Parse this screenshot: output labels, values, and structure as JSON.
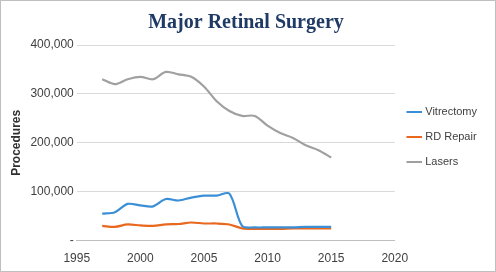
{
  "chart_data": {
    "type": "line",
    "title": "Major Retinal Surgery",
    "y_label": "Procedures",
    "x": [
      1997,
      1998,
      1999,
      2000,
      2001,
      2002,
      2003,
      2004,
      2005,
      2006,
      2007,
      2008,
      2009,
      2010,
      2011,
      2012,
      2013,
      2014,
      2015
    ],
    "series": [
      {
        "name": "Vitrectomy",
        "color": "#3a8fd6",
        "values": [
          55000,
          58000,
          75000,
          72000,
          70000,
          85000,
          82000,
          88000,
          92000,
          92000,
          96000,
          30000,
          27000,
          27000,
          27000,
          27000,
          28000,
          28000,
          28000
        ]
      },
      {
        "name": "RD Repair",
        "color": "#e8681e",
        "values": [
          30000,
          28000,
          33000,
          31000,
          30000,
          33000,
          34000,
          37000,
          35000,
          35000,
          33000,
          25000,
          24000,
          24000,
          24000,
          25000,
          25000,
          25000,
          25000
        ]
      },
      {
        "name": "Lasers",
        "color": "#a0a0a0",
        "values": [
          330000,
          320000,
          330000,
          335000,
          330000,
          345000,
          340000,
          335000,
          315000,
          285000,
          265000,
          255000,
          255000,
          235000,
          220000,
          210000,
          195000,
          185000,
          170000
        ]
      }
    ],
    "xlim": [
      1995,
      2020
    ],
    "xticks": [
      1995,
      2000,
      2005,
      2010,
      2015,
      2020
    ],
    "ylim": [
      0,
      400000
    ],
    "yticks": [
      {
        "value": 0,
        "label": "-"
      },
      {
        "value": 100000,
        "label": "100,000"
      },
      {
        "value": 200000,
        "label": "200,000"
      },
      {
        "value": 300000,
        "label": "300,000"
      },
      {
        "value": 400000,
        "label": "400,000"
      }
    ],
    "grid": "y",
    "legend": "right"
  }
}
